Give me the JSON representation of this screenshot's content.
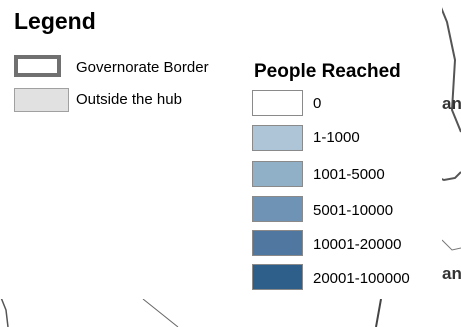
{
  "legend": {
    "title": "Legend",
    "governorate_border_label": "Governorate Border",
    "outside_hub_label": "Outside the hub",
    "outside_hub_color": "#e1e1e1",
    "border_color": "#707070"
  },
  "people_reached": {
    "title": "People Reached",
    "classes": [
      {
        "label": "0",
        "color": "#ffffff"
      },
      {
        "label": "1-1000",
        "color": "#adc5d6"
      },
      {
        "label": "1001-5000",
        "color": "#90b0c7"
      },
      {
        "label": "5001-10000",
        "color": "#6f93b5"
      },
      {
        "label": "10001-20000",
        "color": "#4f77a0"
      },
      {
        "label": "20001-100000",
        "color": "#2e5e8a"
      }
    ]
  },
  "map": {
    "place_label_fragments": [
      "an",
      "an"
    ]
  }
}
